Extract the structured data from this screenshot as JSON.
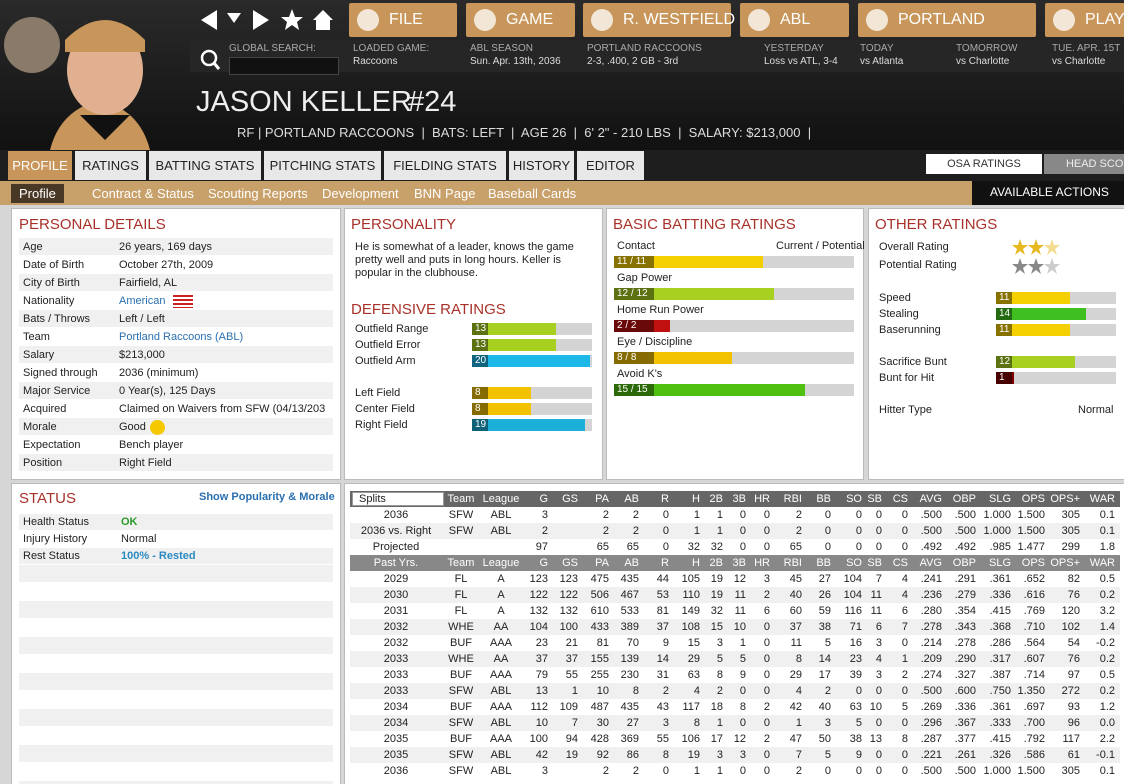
{
  "nav": {
    "buttons": [
      "FILE",
      "GAME",
      "R. WESTFIELD",
      "ABL",
      "PORTLAND",
      "PLAY"
    ],
    "search_label": "GLOBAL SEARCH:",
    "info": [
      {
        "label": "LOADED GAME:",
        "value": "Raccoons"
      },
      {
        "label": "ABL SEASON",
        "value": "Sun. Apr. 13th, 2036"
      },
      {
        "label": "PORTLAND RACCOONS",
        "value": "2-3, .400, 2 GB - 3rd"
      },
      {
        "label": "YESTERDAY",
        "value": "Loss vs ATL, 3-4"
      },
      {
        "label": "TODAY",
        "value": "vs Atlanta"
      },
      {
        "label": "TOMORROW",
        "value": "vs Charlotte"
      },
      {
        "label": "TUE. APR. 15T",
        "value": "vs Charlotte"
      }
    ]
  },
  "player": {
    "name": "JASON KELLER",
    "number": "#24",
    "details": "RF | PORTLAND RACCOONS  |  BATS: LEFT  |  AGE 26  |  6' 2\" - 210 LBS  |  SALARY: $213,000  |"
  },
  "tabs": [
    "PROFILE",
    "RATINGS",
    "BATTING STATS",
    "PITCHING STATS",
    "FIELDING STATS",
    "HISTORY",
    "EDITOR"
  ],
  "right_tabs": [
    "OSA RATINGS",
    "HEAD SCOUT"
  ],
  "subtabs": [
    "Profile",
    "Contract & Status",
    "Scouting Reports",
    "Development",
    "BNN Page",
    "Baseball Cards"
  ],
  "actions": "AVAILABLE ACTIONS",
  "personal": {
    "title": "PERSONAL DETAILS",
    "rows": [
      [
        "Age",
        "26 years, 169 days"
      ],
      [
        "Date of Birth",
        "October 27th, 2009"
      ],
      [
        "City of Birth",
        "Fairfield, AL"
      ],
      [
        "Nationality",
        "American"
      ],
      [
        "Bats / Throws",
        "Left / Left"
      ],
      [
        "Team",
        "Portland Raccoons (ABL)"
      ],
      [
        "Salary",
        "$213,000"
      ],
      [
        "Signed through",
        "2036 (minimum)"
      ],
      [
        "Major Service",
        "0 Year(s), 125 Days"
      ],
      [
        "Acquired",
        "Claimed on Waivers from SFW (04/13/203"
      ],
      [
        "Morale",
        "Good"
      ],
      [
        "Expectation",
        "Bench player"
      ],
      [
        "Position",
        "Right Field"
      ]
    ]
  },
  "personality": {
    "title": "PERSONALITY",
    "text": "He is somewhat of a leader, knows the game pretty well and puts in long hours. Keller is popular in the clubhouse."
  },
  "defensive": {
    "title": "DEFENSIVE RATINGS",
    "rows": [
      {
        "label": "Outfield Range",
        "value": 13,
        "color": "#a8d020"
      },
      {
        "label": "Outfield Error",
        "value": 13,
        "color": "#a8d020"
      },
      {
        "label": "Outfield Arm",
        "value": 20,
        "color": "#1cb8e8"
      },
      {
        "label": "Left Field",
        "value": 8,
        "color": "#f2c200"
      },
      {
        "label": "Center Field",
        "value": 8,
        "color": "#f2c200"
      },
      {
        "label": "Right Field",
        "value": 19,
        "color": "#1cb0d8"
      }
    ]
  },
  "batting": {
    "title": "BASIC BATTING RATINGS",
    "header": "Current / Potential",
    "rows": [
      {
        "label": "Contact",
        "value": 11,
        "value_label": "11 / 11",
        "color": "#f5d000"
      },
      {
        "label": "Gap Power",
        "value": 12,
        "value_label": "12 / 12",
        "color": "#a8d020"
      },
      {
        "label": "Home Run Power",
        "value": 2,
        "value_label": "2 / 2",
        "color": "#c01010"
      },
      {
        "label": "Eye / Discipline",
        "value": 8,
        "value_label": "8 / 8",
        "color": "#f2c200"
      },
      {
        "label": "Avoid K's",
        "value": 15,
        "value_label": "15 / 15",
        "color": "#50c010"
      }
    ]
  },
  "other": {
    "title": "OTHER RATINGS",
    "stars": [
      "Overall Rating",
      "Potential Rating"
    ],
    "rows": [
      {
        "label": "Speed",
        "value": 11,
        "color": "#f5d000"
      },
      {
        "label": "Stealing",
        "value": 14,
        "color": "#40c020"
      },
      {
        "label": "Baserunning",
        "value": 11,
        "color": "#f5d000"
      },
      {
        "label": "Sacrifice Bunt",
        "value": 12,
        "color": "#a8d020"
      },
      {
        "label": "Bunt for Hit",
        "value": 1,
        "color": "#800000"
      }
    ],
    "hitter_label": "Hitter Type",
    "hitter_value": "Normal"
  },
  "status": {
    "title": "STATUS",
    "link": "Show Popularity & Morale",
    "rows": [
      [
        "Health Status",
        "OK"
      ],
      [
        "Injury History",
        "Normal"
      ],
      [
        "Rest Status",
        "100% - Rested"
      ]
    ]
  },
  "stats": {
    "header": [
      "Splits",
      "Team",
      "League",
      "G",
      "GS",
      "PA",
      "AB",
      "R",
      "H",
      "2B",
      "3B",
      "HR",
      "RBI",
      "BB",
      "SO",
      "SB",
      "CS",
      "AVG",
      "OBP",
      "SLG",
      "OPS",
      "OPS+",
      "WAR"
    ],
    "splits": [
      [
        "2036",
        "SFW",
        "ABL",
        "3",
        null,
        "2",
        "2",
        "0",
        "1",
        "1",
        "0",
        "0",
        "2",
        "0",
        "0",
        "0",
        "0",
        ".500",
        ".500",
        "1.000",
        "1.500",
        "305",
        "0.1"
      ],
      [
        "2036 vs. Right",
        "SFW",
        "ABL",
        "2",
        null,
        "2",
        "2",
        "0",
        "1",
        "1",
        "0",
        "0",
        "2",
        "0",
        "0",
        "0",
        "0",
        ".500",
        ".500",
        "1.000",
        "1.500",
        "305",
        "0.1"
      ],
      [
        "Projected",
        null,
        null,
        "97",
        null,
        "65",
        "65",
        "0",
        "32",
        "32",
        "0",
        "0",
        "65",
        "0",
        "0",
        "0",
        "0",
        ".492",
        ".492",
        ".985",
        "1.477",
        "299",
        "1.8"
      ]
    ],
    "header2": [
      "Past Yrs.",
      "Team",
      "League",
      "G",
      "GS",
      "PA",
      "AB",
      "R",
      "H",
      "2B",
      "3B",
      "HR",
      "RBI",
      "BB",
      "SO",
      "SB",
      "CS",
      "AVG",
      "OBP",
      "SLG",
      "OPS",
      "OPS+",
      "WAR"
    ],
    "rows": [
      [
        "2029",
        "FL",
        "A",
        "123",
        "123",
        "475",
        "435",
        "44",
        "105",
        "19",
        "12",
        "3",
        "45",
        "27",
        "104",
        "7",
        "4",
        ".241",
        ".291",
        ".361",
        ".652",
        "82",
        "0.5"
      ],
      [
        "2030",
        "FL",
        "A",
        "122",
        "122",
        "506",
        "467",
        "53",
        "110",
        "19",
        "11",
        "2",
        "40",
        "26",
        "104",
        "11",
        "4",
        ".236",
        ".279",
        ".336",
        ".616",
        "76",
        "0.2"
      ],
      [
        "2031",
        "FL",
        "A",
        "132",
        "132",
        "610",
        "533",
        "81",
        "149",
        "32",
        "11",
        "6",
        "60",
        "59",
        "116",
        "11",
        "6",
        ".280",
        ".354",
        ".415",
        ".769",
        "120",
        "3.2"
      ],
      [
        "2032",
        "WHE",
        "AA",
        "104",
        "100",
        "433",
        "389",
        "37",
        "108",
        "15",
        "10",
        "0",
        "37",
        "38",
        "71",
        "6",
        "7",
        ".278",
        ".343",
        ".368",
        ".710",
        "102",
        "1.4"
      ],
      [
        "2032",
        "BUF",
        "AAA",
        "23",
        "21",
        "81",
        "70",
        "9",
        "15",
        "3",
        "1",
        "0",
        "11",
        "5",
        "16",
        "3",
        "0",
        ".214",
        ".278",
        ".286",
        ".564",
        "54",
        "-0.2"
      ],
      [
        "2033",
        "WHE",
        "AA",
        "37",
        "37",
        "155",
        "139",
        "14",
        "29",
        "5",
        "5",
        "0",
        "8",
        "14",
        "23",
        "4",
        "1",
        ".209",
        ".290",
        ".317",
        ".607",
        "76",
        "0.2"
      ],
      [
        "2033",
        "BUF",
        "AAA",
        "79",
        "55",
        "255",
        "230",
        "31",
        "63",
        "8",
        "9",
        "0",
        "29",
        "17",
        "39",
        "3",
        "2",
        ".274",
        ".327",
        ".387",
        ".714",
        "97",
        "0.5"
      ],
      [
        "2033",
        "SFW",
        "ABL",
        "13",
        "1",
        "10",
        "8",
        "2",
        "4",
        "2",
        "0",
        "0",
        "4",
        "2",
        "0",
        "0",
        "0",
        ".500",
        ".600",
        ".750",
        "1.350",
        "272",
        "0.2"
      ],
      [
        "2034",
        "BUF",
        "AAA",
        "112",
        "109",
        "487",
        "435",
        "43",
        "117",
        "18",
        "8",
        "2",
        "42",
        "40",
        "63",
        "10",
        "5",
        ".269",
        ".336",
        ".361",
        ".697",
        "93",
        "1.2"
      ],
      [
        "2034",
        "SFW",
        "ABL",
        "10",
        "7",
        "30",
        "27",
        "3",
        "8",
        "1",
        "0",
        "0",
        "1",
        "3",
        "5",
        "0",
        "0",
        ".296",
        ".367",
        ".333",
        ".700",
        "96",
        "0.0"
      ],
      [
        "2035",
        "BUF",
        "AAA",
        "100",
        "94",
        "428",
        "369",
        "55",
        "106",
        "17",
        "12",
        "2",
        "47",
        "50",
        "38",
        "13",
        "8",
        ".287",
        ".377",
        ".415",
        ".792",
        "117",
        "2.2"
      ],
      [
        "2035",
        "SFW",
        "ABL",
        "42",
        "19",
        "92",
        "86",
        "8",
        "19",
        "3",
        "3",
        "0",
        "7",
        "5",
        "9",
        "0",
        "0",
        ".221",
        ".261",
        ".326",
        ".586",
        "61",
        "-0.1"
      ],
      [
        "2036",
        "SFW",
        "ABL",
        "3",
        null,
        "2",
        "2",
        "0",
        "1",
        "1",
        "0",
        "0",
        "2",
        "0",
        "0",
        "0",
        "0",
        ".500",
        ".500",
        "1.000",
        "1.500",
        "305",
        "0.1"
      ]
    ]
  }
}
